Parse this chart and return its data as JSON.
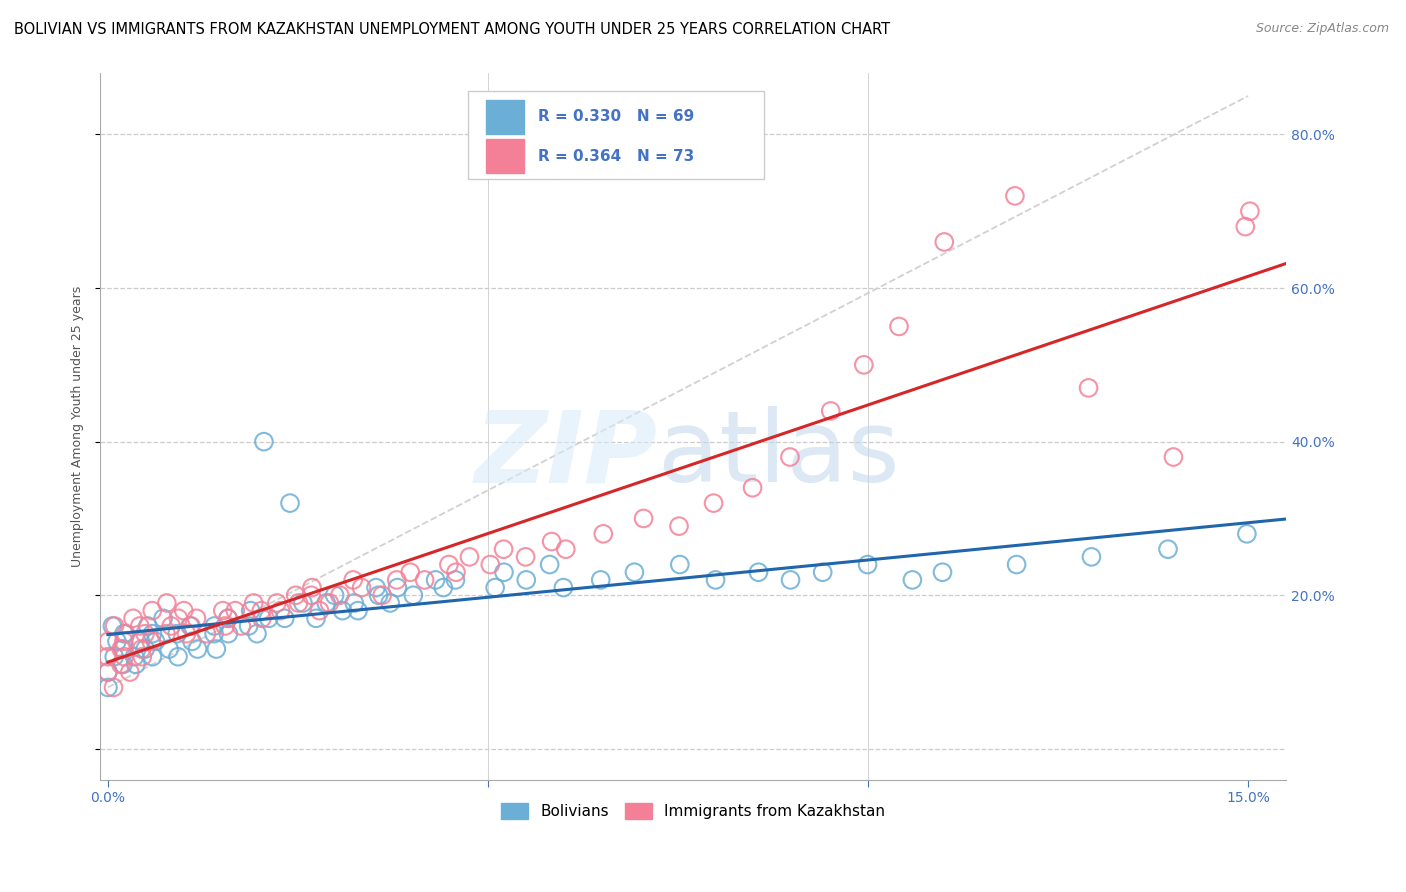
{
  "title": "BOLIVIAN VS IMMIGRANTS FROM KAZAKHSTAN UNEMPLOYMENT AMONG YOUTH UNDER 25 YEARS CORRELATION CHART",
  "source": "Source: ZipAtlas.com",
  "ylabel": "Unemployment Among Youth under 25 years",
  "xlim": [
    -0.001,
    0.155
  ],
  "ylim": [
    -0.04,
    0.88
  ],
  "blue_color": "#a8c8e8",
  "blue_edge_color": "#6baed6",
  "pink_color": "#f4b8c8",
  "pink_edge_color": "#f48098",
  "blue_line_color": "#2166ac",
  "pink_line_color": "#d62728",
  "diag_color": "#cccccc",
  "watermark_zip_color": "#c8dff0",
  "watermark_atlas_color": "#b0cfe0",
  "title_fontsize": 10.5,
  "source_fontsize": 9,
  "axis_label_fontsize": 9,
  "tick_fontsize": 10,
  "legend_fontsize": 11,
  "blue_scatter_x": [
    0.0,
    0.0,
    0.0,
    0.001,
    0.001,
    0.002,
    0.002,
    0.003,
    0.003,
    0.004,
    0.004,
    0.005,
    0.005,
    0.006,
    0.006,
    0.007,
    0.007,
    0.008,
    0.009,
    0.01,
    0.01,
    0.011,
    0.012,
    0.013,
    0.014,
    0.015,
    0.016,
    0.017,
    0.018,
    0.019,
    0.02,
    0.02,
    0.022,
    0.023,
    0.025,
    0.026,
    0.028,
    0.028,
    0.03,
    0.03,
    0.032,
    0.033,
    0.035,
    0.036,
    0.038,
    0.039,
    0.04,
    0.042,
    0.044,
    0.046,
    0.05,
    0.052,
    0.055,
    0.058,
    0.06,
    0.065,
    0.07,
    0.075,
    0.08,
    0.085,
    0.09,
    0.095,
    0.1,
    0.105,
    0.11,
    0.12,
    0.13,
    0.14,
    0.15
  ],
  "blue_scatter_y": [
    0.12,
    0.1,
    0.08,
    0.14,
    0.16,
    0.13,
    0.11,
    0.15,
    0.12,
    0.14,
    0.11,
    0.13,
    0.16,
    0.12,
    0.15,
    0.14,
    0.17,
    0.13,
    0.15,
    0.12,
    0.16,
    0.14,
    0.13,
    0.16,
    0.15,
    0.13,
    0.17,
    0.15,
    0.16,
    0.18,
    0.15,
    0.4,
    0.17,
    0.17,
    0.32,
    0.19,
    0.17,
    0.19,
    0.18,
    0.2,
    0.19,
    0.18,
    0.21,
    0.2,
    0.19,
    0.21,
    0.2,
    0.22,
    0.21,
    0.22,
    0.21,
    0.23,
    0.22,
    0.24,
    0.21,
    0.22,
    0.23,
    0.24,
    0.22,
    0.23,
    0.22,
    0.23,
    0.24,
    0.22,
    0.23,
    0.24,
    0.25,
    0.26,
    0.28
  ],
  "pink_scatter_x": [
    0.0,
    0.0,
    0.0,
    0.0,
    0.001,
    0.001,
    0.001,
    0.002,
    0.002,
    0.003,
    0.003,
    0.003,
    0.004,
    0.004,
    0.005,
    0.005,
    0.006,
    0.006,
    0.007,
    0.007,
    0.008,
    0.009,
    0.01,
    0.01,
    0.011,
    0.012,
    0.013,
    0.014,
    0.015,
    0.016,
    0.017,
    0.018,
    0.019,
    0.02,
    0.021,
    0.022,
    0.023,
    0.024,
    0.025,
    0.026,
    0.027,
    0.028,
    0.029,
    0.03,
    0.032,
    0.034,
    0.036,
    0.038,
    0.04,
    0.042,
    0.044,
    0.046,
    0.048,
    0.05,
    0.052,
    0.055,
    0.058,
    0.06,
    0.065,
    0.07,
    0.075,
    0.08,
    0.085,
    0.09,
    0.095,
    0.1,
    0.105,
    0.11,
    0.12,
    0.13,
    0.14,
    0.15,
    0.15
  ],
  "pink_scatter_y": [
    0.1,
    0.08,
    0.12,
    0.14,
    0.11,
    0.13,
    0.16,
    0.12,
    0.15,
    0.1,
    0.14,
    0.17,
    0.13,
    0.16,
    0.12,
    0.15,
    0.14,
    0.18,
    0.15,
    0.19,
    0.16,
    0.17,
    0.15,
    0.18,
    0.16,
    0.17,
    0.15,
    0.18,
    0.16,
    0.17,
    0.18,
    0.16,
    0.19,
    0.18,
    0.17,
    0.19,
    0.18,
    0.2,
    0.19,
    0.21,
    0.2,
    0.18,
    0.19,
    0.2,
    0.22,
    0.21,
    0.2,
    0.22,
    0.23,
    0.22,
    0.24,
    0.23,
    0.25,
    0.24,
    0.26,
    0.25,
    0.27,
    0.26,
    0.28,
    0.3,
    0.29,
    0.32,
    0.34,
    0.38,
    0.44,
    0.5,
    0.55,
    0.66,
    0.72,
    0.47,
    0.38,
    0.68,
    0.7
  ]
}
